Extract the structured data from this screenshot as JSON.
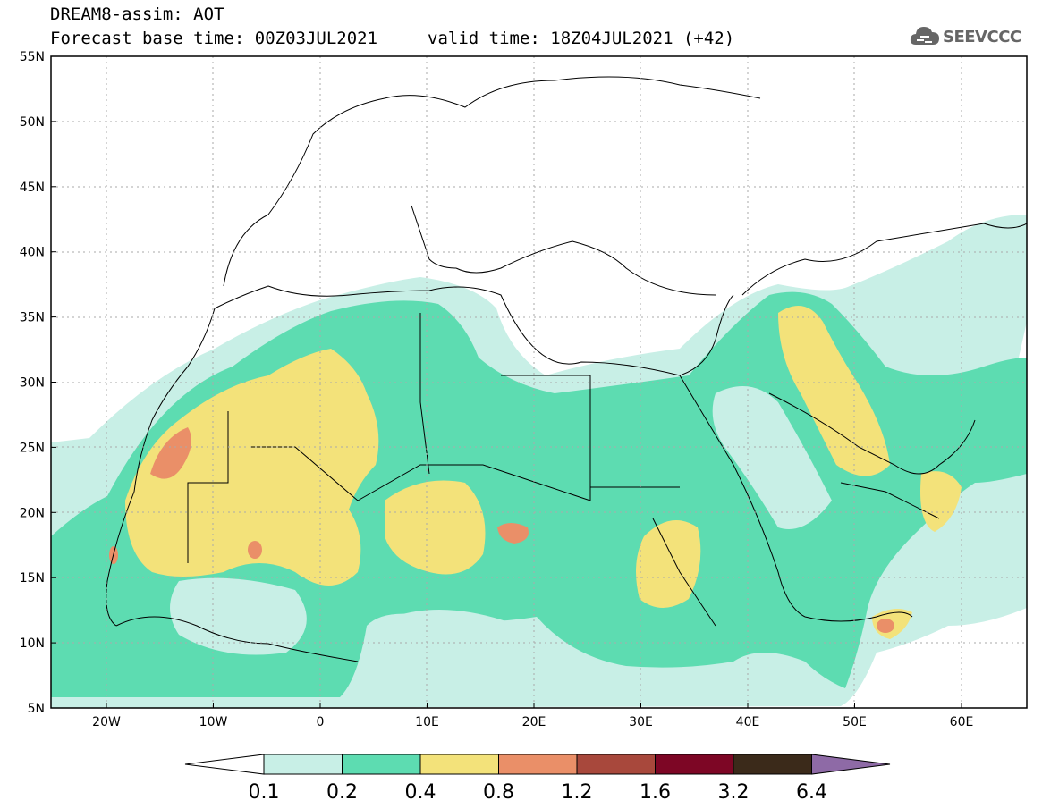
{
  "header": {
    "title": "DREAM8-assim: AOT",
    "base_time": "Forecast base time: 00Z03JUL2021",
    "valid_time": "valid time: 18Z04JUL2021 (+42)"
  },
  "logo": {
    "text": "SEEVCCC",
    "icon": "cloud-icon"
  },
  "map": {
    "lat_labels": [
      "55N",
      "50N",
      "45N",
      "40N",
      "35N",
      "30N",
      "25N",
      "20N",
      "15N",
      "10N",
      "5N"
    ],
    "lon_labels": [
      "20W",
      "10W",
      "0",
      "10E",
      "20E",
      "30E",
      "40E",
      "50E",
      "60E"
    ]
  },
  "colorbar": {
    "labels": [
      "0.1",
      "0.2",
      "0.4",
      "0.8",
      "1.2",
      "1.6",
      "3.2",
      "6.4"
    ],
    "colors": [
      "#ffffff",
      "#c8efe6",
      "#5ddcb1",
      "#f3e27a",
      "#ea8f68",
      "#a8483c",
      "#7d0625",
      "#3b2a1a",
      "#8e6aa6"
    ]
  }
}
